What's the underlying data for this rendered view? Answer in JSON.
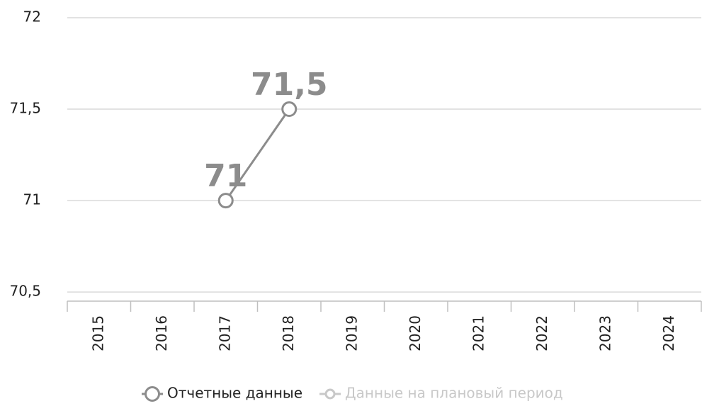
{
  "chart_data": {
    "type": "line",
    "categories": [
      "2015",
      "2016",
      "2017",
      "2018",
      "2019",
      "2020",
      "2021",
      "2022",
      "2023",
      "2024"
    ],
    "series": [
      {
        "name": "Отчетные данные",
        "color": "#8c8c8c",
        "values": [
          null,
          null,
          71,
          71.5,
          null,
          null,
          null,
          null,
          null,
          null
        ],
        "value_labels": [
          null,
          null,
          "71",
          "71,5",
          null,
          null,
          null,
          null,
          null,
          null
        ]
      },
      {
        "name": "Данные на плановый период",
        "color": "#c8c8c8",
        "values": [
          null,
          null,
          null,
          null,
          null,
          null,
          null,
          null,
          null,
          null
        ]
      }
    ],
    "ylim": [
      70.45,
      72
    ],
    "yticks": [
      {
        "value": 70.5,
        "label": "70,5"
      },
      71,
      {
        "value": 71.5,
        "label": "71,5"
      },
      72
    ],
    "grid": true,
    "legend": "bottom"
  }
}
